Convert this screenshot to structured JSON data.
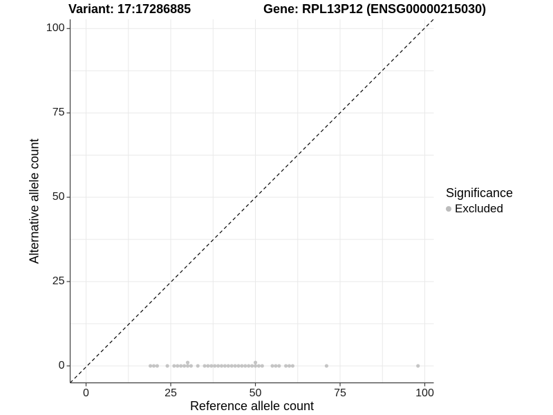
{
  "title": {
    "variant": "Variant: 17:17286885",
    "gene": "Gene: RPL13P12 (ENSG00000215030)"
  },
  "chart_data": {
    "type": "scatter",
    "xlabel": "Reference allele count",
    "ylabel": "Alternative allele count",
    "xlim": [
      -5,
      103
    ],
    "ylim": [
      -5,
      103
    ],
    "x_ticks": [
      0,
      25,
      50,
      75,
      100
    ],
    "y_ticks": [
      0,
      25,
      50,
      75,
      100
    ],
    "grid": {
      "on": true,
      "interval": 12.5,
      "color": "#e9e9e9"
    },
    "identity_line": {
      "style": "dashed",
      "slope": 1,
      "intercept": 0,
      "color": "#000000"
    },
    "legend": {
      "title": "Significance",
      "position": "right",
      "entries": [
        {
          "label": "Excluded",
          "color": "#bcbcbc"
        }
      ]
    },
    "series": [
      {
        "name": "Excluded",
        "color": "#bcbcbc",
        "points": [
          [
            19,
            0
          ],
          [
            20,
            0
          ],
          [
            21,
            0
          ],
          [
            24,
            0
          ],
          [
            26,
            0
          ],
          [
            27,
            0
          ],
          [
            28,
            0
          ],
          [
            29,
            0
          ],
          [
            30,
            0
          ],
          [
            30,
            1
          ],
          [
            31,
            0
          ],
          [
            33,
            0
          ],
          [
            35,
            0
          ],
          [
            36,
            0
          ],
          [
            37,
            0
          ],
          [
            38,
            0
          ],
          [
            39,
            0
          ],
          [
            40,
            0
          ],
          [
            41,
            0
          ],
          [
            42,
            0
          ],
          [
            43,
            0
          ],
          [
            44,
            0
          ],
          [
            45,
            0
          ],
          [
            46,
            0
          ],
          [
            47,
            0
          ],
          [
            48,
            0
          ],
          [
            49,
            0
          ],
          [
            50,
            0
          ],
          [
            50,
            1
          ],
          [
            51,
            0
          ],
          [
            52,
            0
          ],
          [
            55,
            0
          ],
          [
            56,
            0
          ],
          [
            57,
            0
          ],
          [
            59,
            0
          ],
          [
            60,
            0
          ],
          [
            61,
            0
          ],
          [
            71,
            0
          ],
          [
            98,
            0
          ]
        ]
      }
    ]
  },
  "colors": {
    "axis_line": "#3c3c3c",
    "grid_line": "#e9e9e9",
    "tick_mark": "#3c3c3c",
    "point": "#bcbcbc",
    "background": "#ffffff"
  }
}
